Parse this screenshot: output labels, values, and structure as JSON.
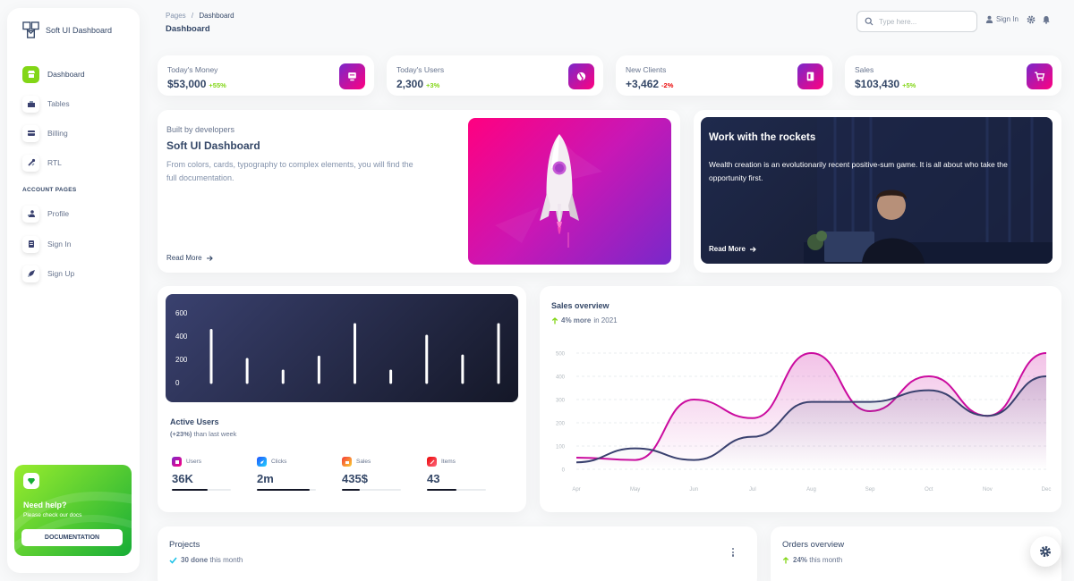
{
  "sidebar": {
    "brand": "Soft UI Dashboard",
    "items": [
      {
        "label": "Dashboard",
        "icon": "shop-icon",
        "active": true
      },
      {
        "label": "Tables",
        "icon": "office-icon"
      },
      {
        "label": "Billing",
        "icon": "credit-card-icon"
      },
      {
        "label": "RTL",
        "icon": "settings-icon"
      }
    ],
    "section_label": "ACCOUNT PAGES",
    "account_items": [
      {
        "label": "Profile",
        "icon": "customer-support-icon"
      },
      {
        "label": "Sign In",
        "icon": "document-icon"
      },
      {
        "label": "Sign Up",
        "icon": "spaceship-icon"
      }
    ],
    "help": {
      "title": "Need help?",
      "subtitle": "Please check our docs",
      "button": "DOCUMENTATION"
    }
  },
  "header": {
    "breadcrumb_root": "Pages",
    "breadcrumb_sep": "/",
    "breadcrumb_current": "Dashboard",
    "title": "Dashboard",
    "search_placeholder": "Type here...",
    "signin": "Sign In"
  },
  "stats": [
    {
      "label": "Today's Money",
      "value": "$53,000",
      "change": "+55%",
      "trend": "up",
      "icon": "money-icon"
    },
    {
      "label": "Today's Users",
      "value": "2,300",
      "change": "+3%",
      "trend": "up",
      "icon": "world-icon"
    },
    {
      "label": "New Clients",
      "value": "+3,462",
      "change": "-2%",
      "trend": "down",
      "icon": "paper-icon"
    },
    {
      "label": "Sales",
      "value": "$103,430",
      "change": "+5%",
      "trend": "up",
      "icon": "cart-icon"
    }
  ],
  "builder": {
    "subtitle": "Built by developers",
    "title": "Soft UI Dashboard",
    "description": "From colors, cards, typography to complex elements, you will find the full documentation.",
    "read_more": "Read More"
  },
  "rockets": {
    "title": "Work with the rockets",
    "description": "Wealth creation is an evolutionarily recent positive-sum game. It is all about who take the opportunity first.",
    "read_more": "Read More"
  },
  "active_users": {
    "title": "Active Users",
    "change": "(+23%)",
    "subtitle_rest": " than last week",
    "metrics": [
      {
        "label": "Users",
        "value": "36K",
        "progress": 0.6,
        "icon": "library-icon",
        "color": "#ff0080"
      },
      {
        "label": "Clicks",
        "value": "2m",
        "progress": 0.9,
        "icon": "rocket-icon",
        "color": "#2152ff"
      },
      {
        "label": "Sales",
        "value": "435$",
        "progress": 0.3,
        "icon": "cart-icon",
        "color": "#f53939"
      },
      {
        "label": "Items",
        "value": "43",
        "progress": 0.5,
        "icon": "settings-icon",
        "color": "#ea0606"
      }
    ]
  },
  "sales_overview": {
    "title": "Sales overview",
    "highlight": "4% more",
    "subtitle_rest": " in 2021"
  },
  "projects": {
    "title": "Projects",
    "done": "30 done",
    "subtitle_rest": " this month"
  },
  "orders": {
    "title": "Orders overview",
    "change": "24%",
    "subtitle_rest": " this month"
  },
  "chart_data": [
    {
      "type": "bar",
      "y_ticks": [
        "0",
        "200",
        "400",
        "600"
      ],
      "ylim": [
        0,
        600
      ],
      "values": [
        450,
        200,
        100,
        220,
        500,
        100,
        400,
        230,
        500
      ],
      "grid": false
    },
    {
      "type": "area",
      "categories": [
        "Apr",
        "May",
        "Jun",
        "Jul",
        "Aug",
        "Sep",
        "Oct",
        "Nov",
        "Dec"
      ],
      "y_ticks": [
        "0",
        "100",
        "200",
        "300",
        "400",
        "500"
      ],
      "ylim": [
        0,
        500
      ],
      "grid": true,
      "colors": [
        "#cb0c9f",
        "#3a416f"
      ],
      "series": [
        {
          "values": [
            50,
            40,
            300,
            220,
            500,
            250,
            400,
            230,
            500
          ]
        },
        {
          "values": [
            30,
            90,
            40,
            140,
            290,
            290,
            340,
            230,
            400
          ]
        }
      ]
    }
  ]
}
